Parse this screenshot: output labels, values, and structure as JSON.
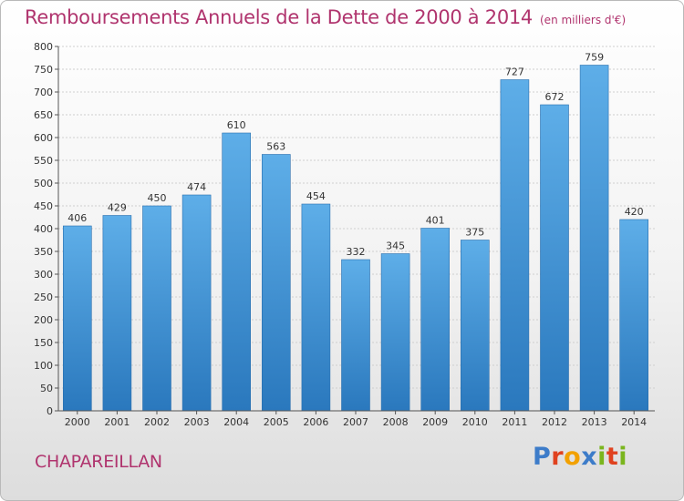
{
  "title": "Remboursements Annuels de la Dette de 2000 à 2014",
  "unit": "(en milliers d'€)",
  "commune": "CHAPAREILLAN",
  "logo": {
    "letters": [
      "P",
      "r",
      "o",
      "x",
      "i",
      "t",
      "i"
    ],
    "colors": [
      "#3d7cc9",
      "#e0421f",
      "#f2a100",
      "#3d7cc9",
      "#7ab51d",
      "#e0421f",
      "#7ab51d"
    ]
  },
  "colors": {
    "bar_top": "#5eaee8",
    "bar_bottom": "#2a78bd",
    "title": "#b0346e"
  },
  "chart_data": {
    "type": "bar",
    "title": "Remboursements Annuels de la Dette de 2000 à 2014",
    "xlabel": "",
    "ylabel": "",
    "categories": [
      "2000",
      "2001",
      "2002",
      "2003",
      "2004",
      "2005",
      "2006",
      "2007",
      "2008",
      "2009",
      "2010",
      "2011",
      "2012",
      "2013",
      "2014"
    ],
    "values": [
      406,
      429,
      450,
      474,
      610,
      563,
      454,
      332,
      345,
      401,
      375,
      727,
      672,
      759,
      420
    ],
    "ylim": [
      0,
      800
    ],
    "yticks": [
      0,
      50,
      100,
      150,
      200,
      250,
      300,
      350,
      400,
      450,
      500,
      550,
      600,
      650,
      700,
      750,
      800
    ],
    "grid": true,
    "legend": "none"
  }
}
